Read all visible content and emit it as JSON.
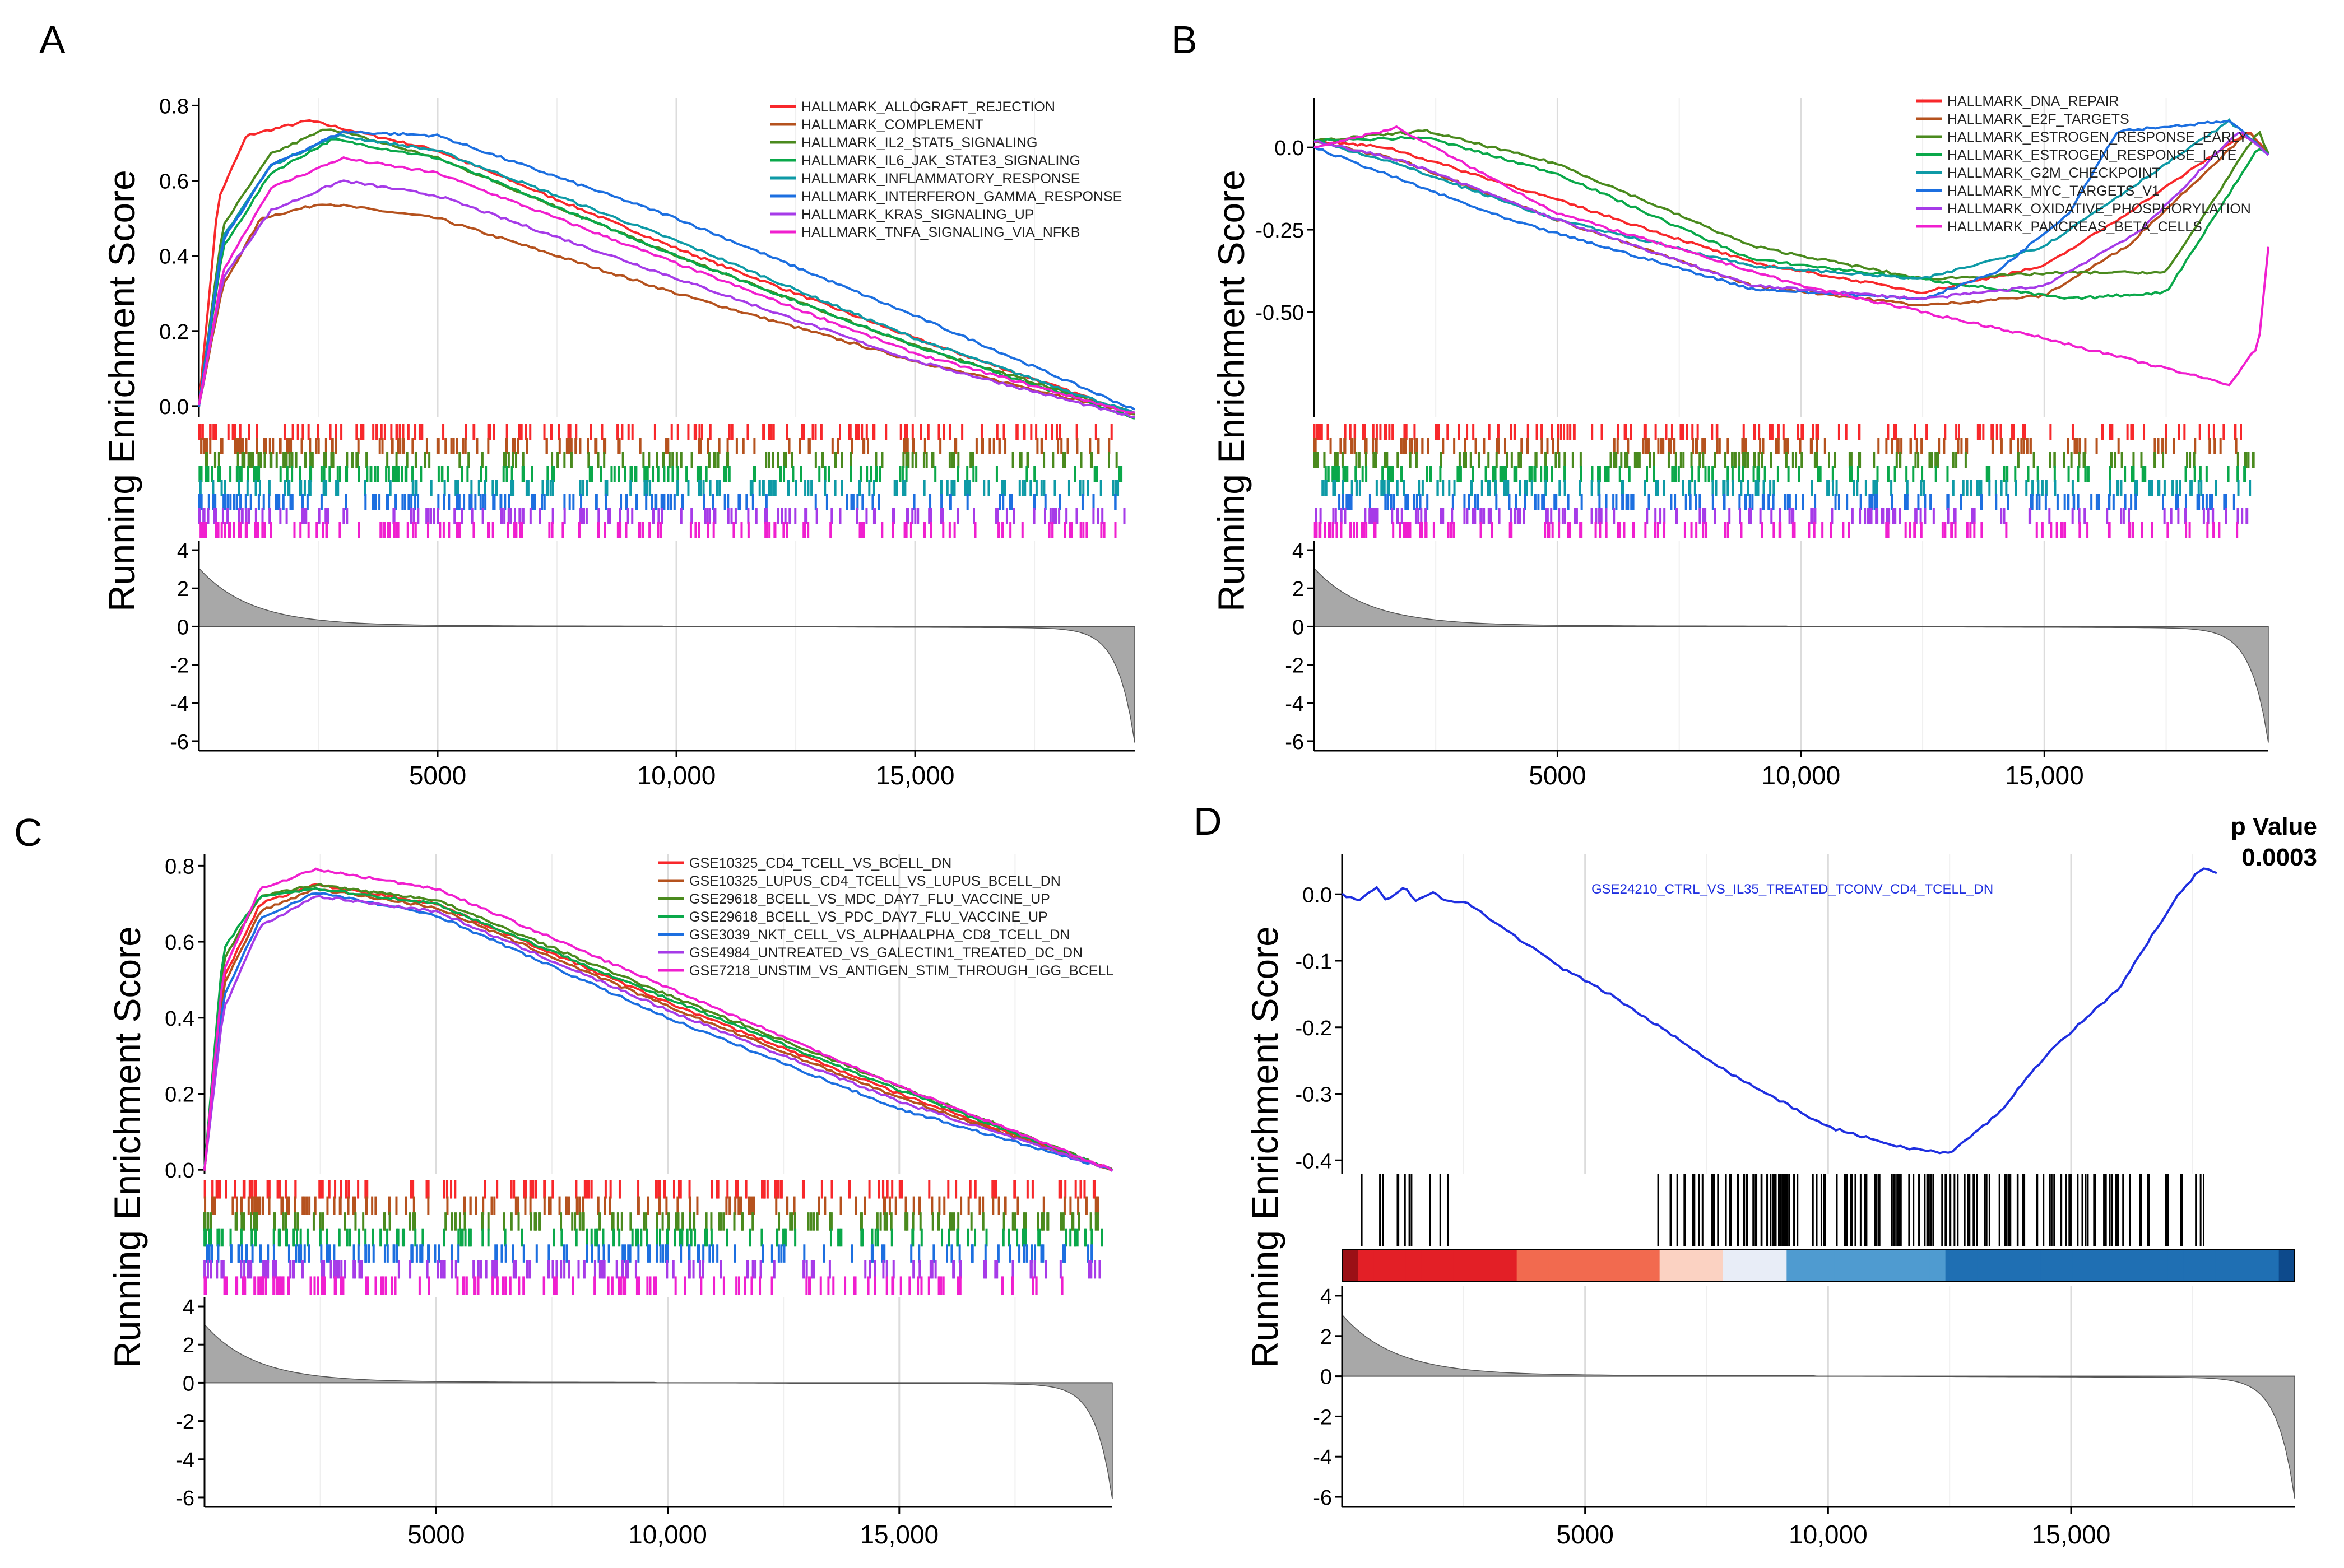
{
  "figure": {
    "panel_labels": [
      "A",
      "B",
      "C",
      "D"
    ],
    "ylabel": "Running Enrichment Score",
    "x_tick_labels": [
      "5000",
      "10,000",
      "15,000"
    ],
    "rank_tick_labels": [
      "4",
      "2",
      "0",
      "-2",
      "-4",
      "-6"
    ]
  },
  "chart_data": [
    {
      "panel": "A",
      "type": "line",
      "title": "",
      "xlabel": "",
      "ylabel": "Running Enrichment Score",
      "xlim": [
        0,
        19600
      ],
      "ylim": [
        -0.03,
        0.82
      ],
      "x_ticks": [
        5000,
        10000,
        15000
      ],
      "y_ticks": [
        0.0,
        0.2,
        0.4,
        0.6,
        0.8
      ],
      "y_tick_labels": [
        "0.0",
        "0.2",
        "0.4",
        "0.6",
        "0.8"
      ],
      "series": [
        {
          "name": "HALLMARK_ALLOGRAFT_REJECTION",
          "color": "#f8282b",
          "x": [
            0,
            400,
            1000,
            2300,
            5000,
            10000,
            15000,
            19600
          ],
          "y": [
            0.0,
            0.55,
            0.72,
            0.76,
            0.68,
            0.42,
            0.18,
            -0.02
          ]
        },
        {
          "name": "HALLMARK_COMPLEMENT",
          "color": "#b5521e",
          "x": [
            0,
            500,
            1300,
            2600,
            5000,
            10000,
            15000,
            19600
          ],
          "y": [
            0.0,
            0.32,
            0.5,
            0.54,
            0.5,
            0.3,
            0.12,
            -0.02
          ]
        },
        {
          "name": "HALLMARK_IL2_STAT5_SIGNALING",
          "color": "#4a8a1e",
          "x": [
            0,
            500,
            1500,
            2700,
            5000,
            10000,
            15000,
            19600
          ],
          "y": [
            0.0,
            0.48,
            0.67,
            0.74,
            0.66,
            0.4,
            0.16,
            -0.02
          ]
        },
        {
          "name": "HALLMARK_IL6_JAK_STATE3_SIGNALING",
          "color": "#0aa84a",
          "x": [
            0,
            500,
            1500,
            2800,
            5000,
            10000,
            15000,
            19600
          ],
          "y": [
            0.0,
            0.42,
            0.62,
            0.71,
            0.66,
            0.4,
            0.16,
            -0.03
          ]
        },
        {
          "name": "HALLMARK_INFLAMMATORY_RESPONSE",
          "color": "#0e9aa6",
          "x": [
            0,
            500,
            1500,
            2900,
            5000,
            10000,
            15000,
            19600
          ],
          "y": [
            0.0,
            0.45,
            0.64,
            0.72,
            0.68,
            0.44,
            0.18,
            -0.02
          ]
        },
        {
          "name": "HALLMARK_INTERFERON_GAMMA_RESPONSE",
          "color": "#1c6fe0",
          "x": [
            0,
            500,
            1500,
            3000,
            5000,
            10000,
            15000,
            19600
          ],
          "y": [
            0.0,
            0.44,
            0.64,
            0.73,
            0.72,
            0.5,
            0.24,
            -0.01
          ]
        },
        {
          "name": "HALLMARK_KRAS_SIGNALING_UP",
          "color": "#a63be8",
          "x": [
            0,
            500,
            1500,
            3000,
            5000,
            10000,
            15000,
            19600
          ],
          "y": [
            0.0,
            0.34,
            0.52,
            0.6,
            0.56,
            0.34,
            0.12,
            -0.03
          ]
        },
        {
          "name": "HALLMARK_TNFA_SIGNALING_VIA_NFKB",
          "color": "#f01fcf",
          "x": [
            0,
            500,
            1500,
            3000,
            5000,
            10000,
            15000,
            19600
          ],
          "y": [
            0.0,
            0.36,
            0.58,
            0.66,
            0.62,
            0.38,
            0.14,
            -0.02
          ]
        }
      ]
    },
    {
      "panel": "B",
      "type": "line",
      "title": "",
      "xlabel": "",
      "ylabel": "Running Enrichment Score",
      "xlim": [
        0,
        19600
      ],
      "ylim": [
        -0.82,
        0.15
      ],
      "x_ticks": [
        5000,
        10000,
        15000
      ],
      "y_ticks": [
        0.0,
        -0.25,
        -0.5
      ],
      "y_tick_labels": [
        "0.0",
        "-0.25",
        "-0.50"
      ],
      "series": [
        {
          "name": "HALLMARK_DNA_REPAIR",
          "color": "#f8282b",
          "x": [
            0,
            1500,
            5000,
            9000,
            12500,
            15000,
            16500,
            19200,
            19600
          ],
          "y": [
            0.02,
            0.0,
            -0.16,
            -0.35,
            -0.44,
            -0.36,
            -0.22,
            0.05,
            -0.02
          ]
        },
        {
          "name": "HALLMARK_E2F_TARGETS",
          "color": "#b5521e",
          "x": [
            0,
            1800,
            5000,
            9000,
            12500,
            15000,
            16700,
            19200,
            19600
          ],
          "y": [
            0.02,
            -0.04,
            -0.22,
            -0.42,
            -0.48,
            -0.45,
            -0.3,
            0.05,
            -0.02
          ]
        },
        {
          "name": "HALLMARK_ESTROGEN_RESPONSE_EARLY",
          "color": "#4a8a1e",
          "x": [
            0,
            2300,
            5000,
            9000,
            12500,
            15500,
            17500,
            19400,
            19600
          ],
          "y": [
            0.02,
            0.05,
            -0.05,
            -0.3,
            -0.4,
            -0.38,
            -0.38,
            0.05,
            -0.02
          ]
        },
        {
          "name": "HALLMARK_ESTROGEN_RESPONSE_LATE",
          "color": "#0aa84a",
          "x": [
            0,
            2300,
            5000,
            9000,
            12500,
            15500,
            17500,
            19400,
            19600
          ],
          "y": [
            0.02,
            0.03,
            -0.08,
            -0.34,
            -0.4,
            -0.46,
            -0.44,
            0.0,
            -0.02
          ]
        },
        {
          "name": "HALLMARK_G2M_CHECKPOINT",
          "color": "#0e9aa6",
          "x": [
            0,
            1500,
            5000,
            9000,
            12500,
            15000,
            16500,
            18800,
            19600
          ],
          "y": [
            0.02,
            -0.04,
            -0.22,
            -0.36,
            -0.4,
            -0.3,
            -0.15,
            0.08,
            -0.02
          ]
        },
        {
          "name": "HALLMARK_MYC_TARGETS_V1",
          "color": "#1c6fe0",
          "x": [
            0,
            4000,
            9000,
            12500,
            14000,
            15500,
            16500,
            18800,
            19600
          ],
          "y": [
            0.0,
            -0.22,
            -0.43,
            -0.46,
            -0.38,
            -0.2,
            0.05,
            0.08,
            -0.02
          ]
        },
        {
          "name": "HALLMARK_OXIDATIVE_PHOSPHORYLATION",
          "color": "#a63be8",
          "x": [
            0,
            1800,
            5000,
            9000,
            12500,
            15000,
            17000,
            19000,
            19600
          ],
          "y": [
            0.02,
            -0.04,
            -0.22,
            -0.42,
            -0.46,
            -0.42,
            -0.25,
            0.05,
            -0.02
          ]
        },
        {
          "name": "HALLMARK_PANCREAS_BETA_CELLS",
          "color": "#f01fcf",
          "x": [
            0,
            1700,
            5000,
            10000,
            15000,
            18800,
            19400,
            19600
          ],
          "y": [
            0.0,
            0.06,
            -0.2,
            -0.42,
            -0.58,
            -0.72,
            -0.6,
            -0.3
          ]
        }
      ]
    },
    {
      "panel": "C",
      "type": "line",
      "title": "",
      "xlabel": "",
      "ylabel": "Running Enrichment Score",
      "xlim": [
        0,
        19600
      ],
      "ylim": [
        -0.01,
        0.83
      ],
      "x_ticks": [
        5000,
        10000,
        15000
      ],
      "y_ticks": [
        0.0,
        0.2,
        0.4,
        0.6,
        0.8
      ],
      "y_tick_labels": [
        "0.0",
        "0.2",
        "0.4",
        "0.6",
        "0.8"
      ],
      "series": [
        {
          "name": "GSE10325_CD4_TCELL_VS_BCELL_DN",
          "color": "#f8282b",
          "x": [
            0,
            400,
            1200,
            2400,
            5000,
            10000,
            15000,
            19600
          ],
          "y": [
            0.0,
            0.5,
            0.7,
            0.75,
            0.7,
            0.44,
            0.2,
            0.0
          ]
        },
        {
          "name": "GSE10325_LUPUS_CD4_TCELL_VS_LUPUS_BCELL_DN",
          "color": "#b5521e",
          "x": [
            0,
            400,
            1200,
            2400,
            5000,
            10000,
            15000,
            19600
          ],
          "y": [
            0.0,
            0.48,
            0.68,
            0.74,
            0.69,
            0.43,
            0.19,
            0.0
          ]
        },
        {
          "name": "GSE29618_BCELL_VS_MDC_DAY7_FLU_VACCINE_UP",
          "color": "#4a8a1e",
          "x": [
            0,
            400,
            1200,
            2400,
            5000,
            10000,
            15000,
            19600
          ],
          "y": [
            0.0,
            0.55,
            0.72,
            0.75,
            0.71,
            0.46,
            0.22,
            0.0
          ]
        },
        {
          "name": "GSE29618_BCELL_VS_PDC_DAY7_FLU_VACCINE_UP",
          "color": "#0aa84a",
          "x": [
            0,
            400,
            1200,
            2400,
            5000,
            10000,
            15000,
            19600
          ],
          "y": [
            0.0,
            0.58,
            0.72,
            0.74,
            0.7,
            0.45,
            0.21,
            0.0
          ]
        },
        {
          "name": "GSE3039_NKT_CELL_VS_ALPHAALPHA_CD8_TCELL_DN",
          "color": "#1c6fe0",
          "x": [
            0,
            400,
            1200,
            2400,
            5000,
            10000,
            15000,
            19600
          ],
          "y": [
            0.0,
            0.45,
            0.66,
            0.73,
            0.67,
            0.4,
            0.16,
            0.0
          ]
        },
        {
          "name": "GSE4984_UNTREATED_VS_GALECTIN1_TREATED_DC_DN",
          "color": "#a63be8",
          "x": [
            0,
            400,
            1200,
            2400,
            5000,
            10000,
            15000,
            19600
          ],
          "y": [
            0.0,
            0.42,
            0.64,
            0.72,
            0.68,
            0.42,
            0.18,
            0.0
          ]
        },
        {
          "name": "GSE7218_UNSTIM_VS_ANTIGEN_STIM_THROUGH_IGG_BCELL",
          "color": "#f01fcf",
          "x": [
            0,
            400,
            1200,
            2400,
            5000,
            10000,
            15000,
            19600
          ],
          "y": [
            0.0,
            0.52,
            0.74,
            0.79,
            0.74,
            0.48,
            0.22,
            0.0
          ]
        }
      ]
    },
    {
      "panel": "D",
      "type": "line",
      "title": "",
      "xlabel": "",
      "ylabel": "Running Enrichment Score",
      "xlim": [
        0,
        19600
      ],
      "ylim": [
        -0.42,
        0.06
      ],
      "x_ticks": [
        5000,
        10000,
        15000
      ],
      "y_ticks": [
        0.0,
        -0.1,
        -0.2,
        -0.3,
        -0.4
      ],
      "y_tick_labels": [
        "0.0",
        "-0.1",
        "-0.2",
        "-0.3",
        "-0.4"
      ],
      "pvalue_title": "p Value",
      "pvalue": "0.0003",
      "series": [
        {
          "name": "GSE24210_CTRL_VS_IL35_TREATED_TCONV_CD4_TCELL_DN",
          "color": "#1f2fe0",
          "x": [
            0,
            300,
            700,
            900,
            1300,
            1500,
            1900,
            2100,
            2500,
            4500,
            5500,
            8000,
            10000,
            11500,
            12500,
            13500,
            14500,
            16000,
            17200,
            17700,
            18000
          ],
          "y": [
            0.0,
            -0.01,
            0.01,
            -0.01,
            0.01,
            -0.01,
            0.005,
            -0.01,
            -0.01,
            -0.11,
            -0.15,
            -0.27,
            -0.35,
            -0.38,
            -0.39,
            -0.33,
            -0.24,
            -0.14,
            0.0,
            0.04,
            0.03
          ]
        }
      ]
    }
  ]
}
